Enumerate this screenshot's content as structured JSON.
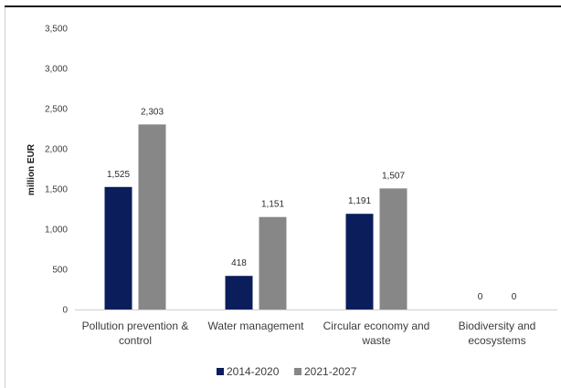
{
  "chart_data": {
    "type": "bar",
    "title": "",
    "xlabel": "",
    "ylabel": "million EUR",
    "ylim": [
      0,
      3500
    ],
    "yticks": [
      0,
      500,
      1000,
      1500,
      2000,
      2500,
      3000,
      3500
    ],
    "ytick_labels": [
      "0",
      "500",
      "1,000",
      "1,500",
      "2,000",
      "2,500",
      "3,000",
      "3,500"
    ],
    "categories": [
      [
        "Pollution prevention &",
        "control"
      ],
      [
        "Water management"
      ],
      [
        "Circular economy and",
        "waste"
      ],
      [
        "Biodiversity and",
        "ecosystems"
      ]
    ],
    "series": [
      {
        "name": "2014-2020",
        "color": "#0b1d5b",
        "values": [
          1525,
          418,
          1191,
          0
        ],
        "labels": [
          "1,525",
          "418",
          "1,191",
          "0"
        ]
      },
      {
        "name": "2021-2027",
        "color": "#878787",
        "values": [
          2303,
          1151,
          1507,
          0
        ],
        "labels": [
          "2,303",
          "1,151",
          "1,507",
          "0"
        ]
      }
    ],
    "legend_position": "bottom",
    "grid": false
  }
}
